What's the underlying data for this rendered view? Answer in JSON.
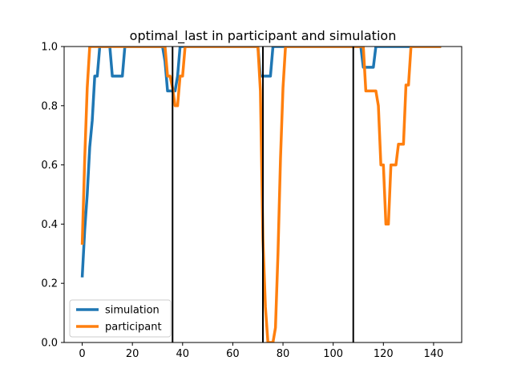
{
  "chart_data": {
    "type": "line",
    "title": "optimal_last in participant and simulation",
    "xlabel": "",
    "ylabel": "",
    "xlim": [
      -7.2,
      151.2
    ],
    "ylim": [
      0.0,
      1.0
    ],
    "x_ticks": [
      0,
      20,
      40,
      60,
      80,
      100,
      120,
      140
    ],
    "y_ticks": [
      0.0,
      0.2,
      0.4,
      0.6,
      0.8,
      1.0
    ],
    "x_tick_labels": [
      "0",
      "20",
      "40",
      "60",
      "80",
      "100",
      "120",
      "140"
    ],
    "y_tick_labels": [
      "0.0",
      "0.2",
      "0.4",
      "0.6",
      "0.8",
      "1.0"
    ],
    "vlines": [
      36,
      72,
      108
    ],
    "legend_position": "lower-left",
    "series": [
      {
        "name": "simulation",
        "color": "#1f77b4",
        "points": [
          [
            0,
            0.22
          ],
          [
            1,
            0.38
          ],
          [
            2,
            0.5
          ],
          [
            3,
            0.66
          ],
          [
            4,
            0.75
          ],
          [
            5,
            0.9
          ],
          [
            6,
            0.9
          ],
          [
            7,
            1.0
          ],
          [
            8,
            1.0
          ],
          [
            9,
            1.0
          ],
          [
            10,
            1.0
          ],
          [
            11,
            1.0
          ],
          [
            12,
            0.9
          ],
          [
            13,
            0.9
          ],
          [
            14,
            0.9
          ],
          [
            15,
            0.9
          ],
          [
            16,
            0.9
          ],
          [
            17,
            1.0
          ],
          [
            18,
            1.0
          ],
          [
            19,
            1.0
          ],
          [
            20,
            1.0
          ],
          [
            21,
            1.0
          ],
          [
            22,
            1.0
          ],
          [
            23,
            1.0
          ],
          [
            24,
            1.0
          ],
          [
            25,
            1.0
          ],
          [
            26,
            1.0
          ],
          [
            27,
            1.0
          ],
          [
            28,
            1.0
          ],
          [
            29,
            1.0
          ],
          [
            30,
            1.0
          ],
          [
            31,
            1.0
          ],
          [
            32,
            1.0
          ],
          [
            33,
            0.95
          ],
          [
            34,
            0.85
          ],
          [
            35,
            0.85
          ],
          [
            36,
            0.85
          ],
          [
            37,
            0.85
          ],
          [
            38,
            0.9
          ],
          [
            39,
            1.0
          ],
          [
            40,
            1.0
          ],
          [
            41,
            1.0
          ],
          [
            42,
            1.0
          ],
          [
            43,
            1.0
          ],
          [
            44,
            1.0
          ],
          [
            45,
            1.0
          ],
          [
            46,
            1.0
          ],
          [
            47,
            1.0
          ],
          [
            48,
            1.0
          ],
          [
            49,
            1.0
          ],
          [
            50,
            1.0
          ],
          [
            51,
            1.0
          ],
          [
            52,
            1.0
          ],
          [
            53,
            1.0
          ],
          [
            54,
            1.0
          ],
          [
            55,
            1.0
          ],
          [
            56,
            1.0
          ],
          [
            57,
            1.0
          ],
          [
            58,
            1.0
          ],
          [
            59,
            1.0
          ],
          [
            60,
            1.0
          ],
          [
            61,
            1.0
          ],
          [
            62,
            1.0
          ],
          [
            63,
            1.0
          ],
          [
            64,
            1.0
          ],
          [
            65,
            1.0
          ],
          [
            66,
            1.0
          ],
          [
            67,
            1.0
          ],
          [
            68,
            1.0
          ],
          [
            69,
            1.0
          ],
          [
            70,
            1.0
          ],
          [
            71,
            0.9
          ],
          [
            72,
            0.9
          ],
          [
            73,
            0.9
          ],
          [
            74,
            0.9
          ],
          [
            75,
            0.9
          ],
          [
            76,
            1.0
          ],
          [
            77,
            1.0
          ],
          [
            78,
            1.0
          ],
          [
            79,
            1.0
          ],
          [
            80,
            1.0
          ],
          [
            81,
            1.0
          ],
          [
            82,
            1.0
          ],
          [
            83,
            1.0
          ],
          [
            84,
            1.0
          ],
          [
            85,
            1.0
          ],
          [
            86,
            1.0
          ],
          [
            87,
            1.0
          ],
          [
            88,
            1.0
          ],
          [
            89,
            1.0
          ],
          [
            90,
            1.0
          ],
          [
            91,
            1.0
          ],
          [
            92,
            1.0
          ],
          [
            93,
            1.0
          ],
          [
            94,
            1.0
          ],
          [
            95,
            1.0
          ],
          [
            96,
            1.0
          ],
          [
            97,
            1.0
          ],
          [
            98,
            1.0
          ],
          [
            99,
            1.0
          ],
          [
            100,
            1.0
          ],
          [
            101,
            1.0
          ],
          [
            102,
            1.0
          ],
          [
            103,
            1.0
          ],
          [
            104,
            1.0
          ],
          [
            105,
            1.0
          ],
          [
            106,
            1.0
          ],
          [
            107,
            1.0
          ],
          [
            108,
            1.0
          ],
          [
            109,
            1.0
          ],
          [
            110,
            1.0
          ],
          [
            111,
            1.0
          ],
          [
            112,
            0.93
          ],
          [
            113,
            0.93
          ],
          [
            114,
            0.93
          ],
          [
            115,
            0.93
          ],
          [
            116,
            0.93
          ],
          [
            117,
            1.0
          ],
          [
            118,
            1.0
          ],
          [
            119,
            1.0
          ],
          [
            120,
            1.0
          ],
          [
            121,
            1.0
          ],
          [
            122,
            1.0
          ],
          [
            123,
            1.0
          ],
          [
            124,
            1.0
          ],
          [
            125,
            1.0
          ],
          [
            126,
            1.0
          ],
          [
            127,
            1.0
          ],
          [
            128,
            1.0
          ],
          [
            129,
            1.0
          ],
          [
            130,
            1.0
          ],
          [
            131,
            1.0
          ],
          [
            132,
            1.0
          ],
          [
            133,
            1.0
          ],
          [
            134,
            1.0
          ],
          [
            135,
            1.0
          ],
          [
            136,
            1.0
          ],
          [
            137,
            1.0
          ],
          [
            138,
            1.0
          ],
          [
            139,
            1.0
          ],
          [
            140,
            1.0
          ],
          [
            141,
            1.0
          ],
          [
            142,
            1.0
          ],
          [
            143,
            1.0
          ]
        ]
      },
      {
        "name": "participant",
        "color": "#ff7f0e",
        "points": [
          [
            0,
            0.33
          ],
          [
            1,
            0.62
          ],
          [
            2,
            0.86
          ],
          [
            3,
            1.0
          ],
          [
            4,
            1.0
          ],
          [
            5,
            1.0
          ],
          [
            6,
            1.0
          ],
          [
            7,
            1.0
          ],
          [
            8,
            1.0
          ],
          [
            9,
            1.0
          ],
          [
            10,
            1.0
          ],
          [
            11,
            1.0
          ],
          [
            12,
            1.0
          ],
          [
            13,
            1.0
          ],
          [
            14,
            1.0
          ],
          [
            15,
            1.0
          ],
          [
            16,
            1.0
          ],
          [
            17,
            1.0
          ],
          [
            18,
            1.0
          ],
          [
            19,
            1.0
          ],
          [
            20,
            1.0
          ],
          [
            21,
            1.0
          ],
          [
            22,
            1.0
          ],
          [
            23,
            1.0
          ],
          [
            24,
            1.0
          ],
          [
            25,
            1.0
          ],
          [
            26,
            1.0
          ],
          [
            27,
            1.0
          ],
          [
            28,
            1.0
          ],
          [
            29,
            1.0
          ],
          [
            30,
            1.0
          ],
          [
            31,
            1.0
          ],
          [
            32,
            1.0
          ],
          [
            33,
            1.0
          ],
          [
            34,
            0.9
          ],
          [
            35,
            0.9
          ],
          [
            36,
            0.86
          ],
          [
            37,
            0.8
          ],
          [
            38,
            0.8
          ],
          [
            39,
            0.9
          ],
          [
            40,
            0.9
          ],
          [
            41,
            1.0
          ],
          [
            42,
            1.0
          ],
          [
            43,
            1.0
          ],
          [
            44,
            1.0
          ],
          [
            45,
            1.0
          ],
          [
            46,
            1.0
          ],
          [
            47,
            1.0
          ],
          [
            48,
            1.0
          ],
          [
            49,
            1.0
          ],
          [
            50,
            1.0
          ],
          [
            51,
            1.0
          ],
          [
            52,
            1.0
          ],
          [
            53,
            1.0
          ],
          [
            54,
            1.0
          ],
          [
            55,
            1.0
          ],
          [
            56,
            1.0
          ],
          [
            57,
            1.0
          ],
          [
            58,
            1.0
          ],
          [
            59,
            1.0
          ],
          [
            60,
            1.0
          ],
          [
            61,
            1.0
          ],
          [
            62,
            1.0
          ],
          [
            63,
            1.0
          ],
          [
            64,
            1.0
          ],
          [
            65,
            1.0
          ],
          [
            66,
            1.0
          ],
          [
            67,
            1.0
          ],
          [
            68,
            1.0
          ],
          [
            69,
            1.0
          ],
          [
            70,
            1.0
          ],
          [
            71,
            0.85
          ],
          [
            72,
            0.35
          ],
          [
            73,
            0.12
          ],
          [
            74,
            0.0
          ],
          [
            75,
            0.0
          ],
          [
            76,
            0.0
          ],
          [
            77,
            0.05
          ],
          [
            78,
            0.3
          ],
          [
            79,
            0.62
          ],
          [
            80,
            0.86
          ],
          [
            81,
            1.0
          ],
          [
            82,
            1.0
          ],
          [
            83,
            1.0
          ],
          [
            84,
            1.0
          ],
          [
            85,
            1.0
          ],
          [
            86,
            1.0
          ],
          [
            87,
            1.0
          ],
          [
            88,
            1.0
          ],
          [
            89,
            1.0
          ],
          [
            90,
            1.0
          ],
          [
            91,
            1.0
          ],
          [
            92,
            1.0
          ],
          [
            93,
            1.0
          ],
          [
            94,
            1.0
          ],
          [
            95,
            1.0
          ],
          [
            96,
            1.0
          ],
          [
            97,
            1.0
          ],
          [
            98,
            1.0
          ],
          [
            99,
            1.0
          ],
          [
            100,
            1.0
          ],
          [
            101,
            1.0
          ],
          [
            102,
            1.0
          ],
          [
            103,
            1.0
          ],
          [
            104,
            1.0
          ],
          [
            105,
            1.0
          ],
          [
            106,
            1.0
          ],
          [
            107,
            1.0
          ],
          [
            108,
            1.0
          ],
          [
            109,
            1.0
          ],
          [
            110,
            1.0
          ],
          [
            111,
            1.0
          ],
          [
            112,
            1.0
          ],
          [
            113,
            0.85
          ],
          [
            114,
            0.85
          ],
          [
            115,
            0.85
          ],
          [
            116,
            0.85
          ],
          [
            117,
            0.85
          ],
          [
            118,
            0.8
          ],
          [
            119,
            0.6
          ],
          [
            120,
            0.6
          ],
          [
            121,
            0.4
          ],
          [
            122,
            0.4
          ],
          [
            123,
            0.6
          ],
          [
            124,
            0.6
          ],
          [
            125,
            0.6
          ],
          [
            126,
            0.67
          ],
          [
            127,
            0.67
          ],
          [
            128,
            0.67
          ],
          [
            129,
            0.87
          ],
          [
            130,
            0.87
          ],
          [
            131,
            1.0
          ],
          [
            132,
            1.0
          ],
          [
            133,
            1.0
          ],
          [
            134,
            1.0
          ],
          [
            135,
            1.0
          ],
          [
            136,
            1.0
          ],
          [
            137,
            1.0
          ],
          [
            138,
            1.0
          ],
          [
            139,
            1.0
          ],
          [
            140,
            1.0
          ],
          [
            141,
            1.0
          ],
          [
            142,
            1.0
          ],
          [
            143,
            1.0
          ]
        ]
      }
    ]
  }
}
